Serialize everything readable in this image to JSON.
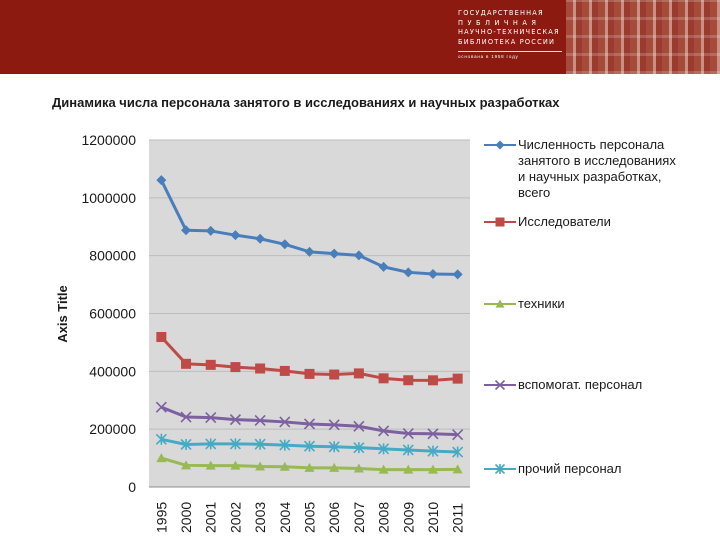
{
  "banner": {
    "org_lines": [
      "ГОСУДАРСТВЕННАЯ",
      "П У Б Л И Ч Н А Я",
      "НАУЧНО-ТЕХНИЧЕСКАЯ",
      "БИБЛИОТЕКА РОССИИ"
    ],
    "tagline": "основана в 1958 году"
  },
  "chart_data": {
    "type": "line",
    "title": "Динамика числа персонала занятого в исследованиях и научных разработках",
    "xlabel": "",
    "ylabel": "Axis Title",
    "ylim": [
      0,
      1200000
    ],
    "yticks": [
      0,
      200000,
      400000,
      600000,
      800000,
      1000000,
      1200000
    ],
    "ytick_labels": [
      "0",
      "200000",
      "400000",
      "600000",
      "800000",
      "1000000",
      "1200000"
    ],
    "categories": [
      "1995",
      "2000",
      "2001",
      "2002",
      "2003",
      "2004",
      "2005",
      "2006",
      "2007",
      "2008",
      "2009",
      "2010",
      "2011"
    ],
    "plot_background": "#d9d9d9",
    "grid": true,
    "legend_position": "right",
    "series": [
      {
        "name": "Численность персонала занятого в исследованиях и научных разработках, всего",
        "name_lines": [
          "Численность персонала",
          "занятого в исследованиях",
          "и научных разработках,",
          "всего"
        ],
        "color": "#4a7ebb",
        "marker": "diamond",
        "values": [
          1061044,
          887729,
          885568,
          870878,
          858470,
          839338,
          813207,
          807066,
          801135,
          761252,
          742433,
          736540,
          735273
        ]
      },
      {
        "name": "Исследователи",
        "name_lines": [
          "Исследователи"
        ],
        "color": "#be4b48",
        "marker": "square",
        "values": [
          518690,
          425954,
          422392,
          414676,
          409775,
          401425,
          391121,
          388939,
          392849,
          375804,
          369237,
          368915,
          374746
        ]
      },
      {
        "name": "техники",
        "name_lines": [
          "техники"
        ],
        "color": "#98b954",
        "marker": "triangle",
        "values": [
          100000,
          75000,
          74000,
          74000,
          71000,
          70000,
          66000,
          66000,
          64000,
          60000,
          60000,
          60000,
          61000
        ]
      },
      {
        "name": "вспомогат. персонал",
        "name_lines": [
          "вспомогат. персонал"
        ],
        "color": "#7d60a0",
        "marker": "x",
        "values": [
          276000,
          242000,
          240000,
          233000,
          230000,
          225000,
          218000,
          215000,
          210000,
          194000,
          185000,
          184000,
          181000
        ]
      },
      {
        "name": "прочий персонал",
        "name_lines": [
          "прочий персонал"
        ],
        "color": "#46aac5",
        "marker": "star",
        "values": [
          165000,
          147000,
          149000,
          149000,
          148000,
          145000,
          141000,
          139000,
          136000,
          132000,
          128000,
          124000,
          121000
        ]
      }
    ]
  }
}
